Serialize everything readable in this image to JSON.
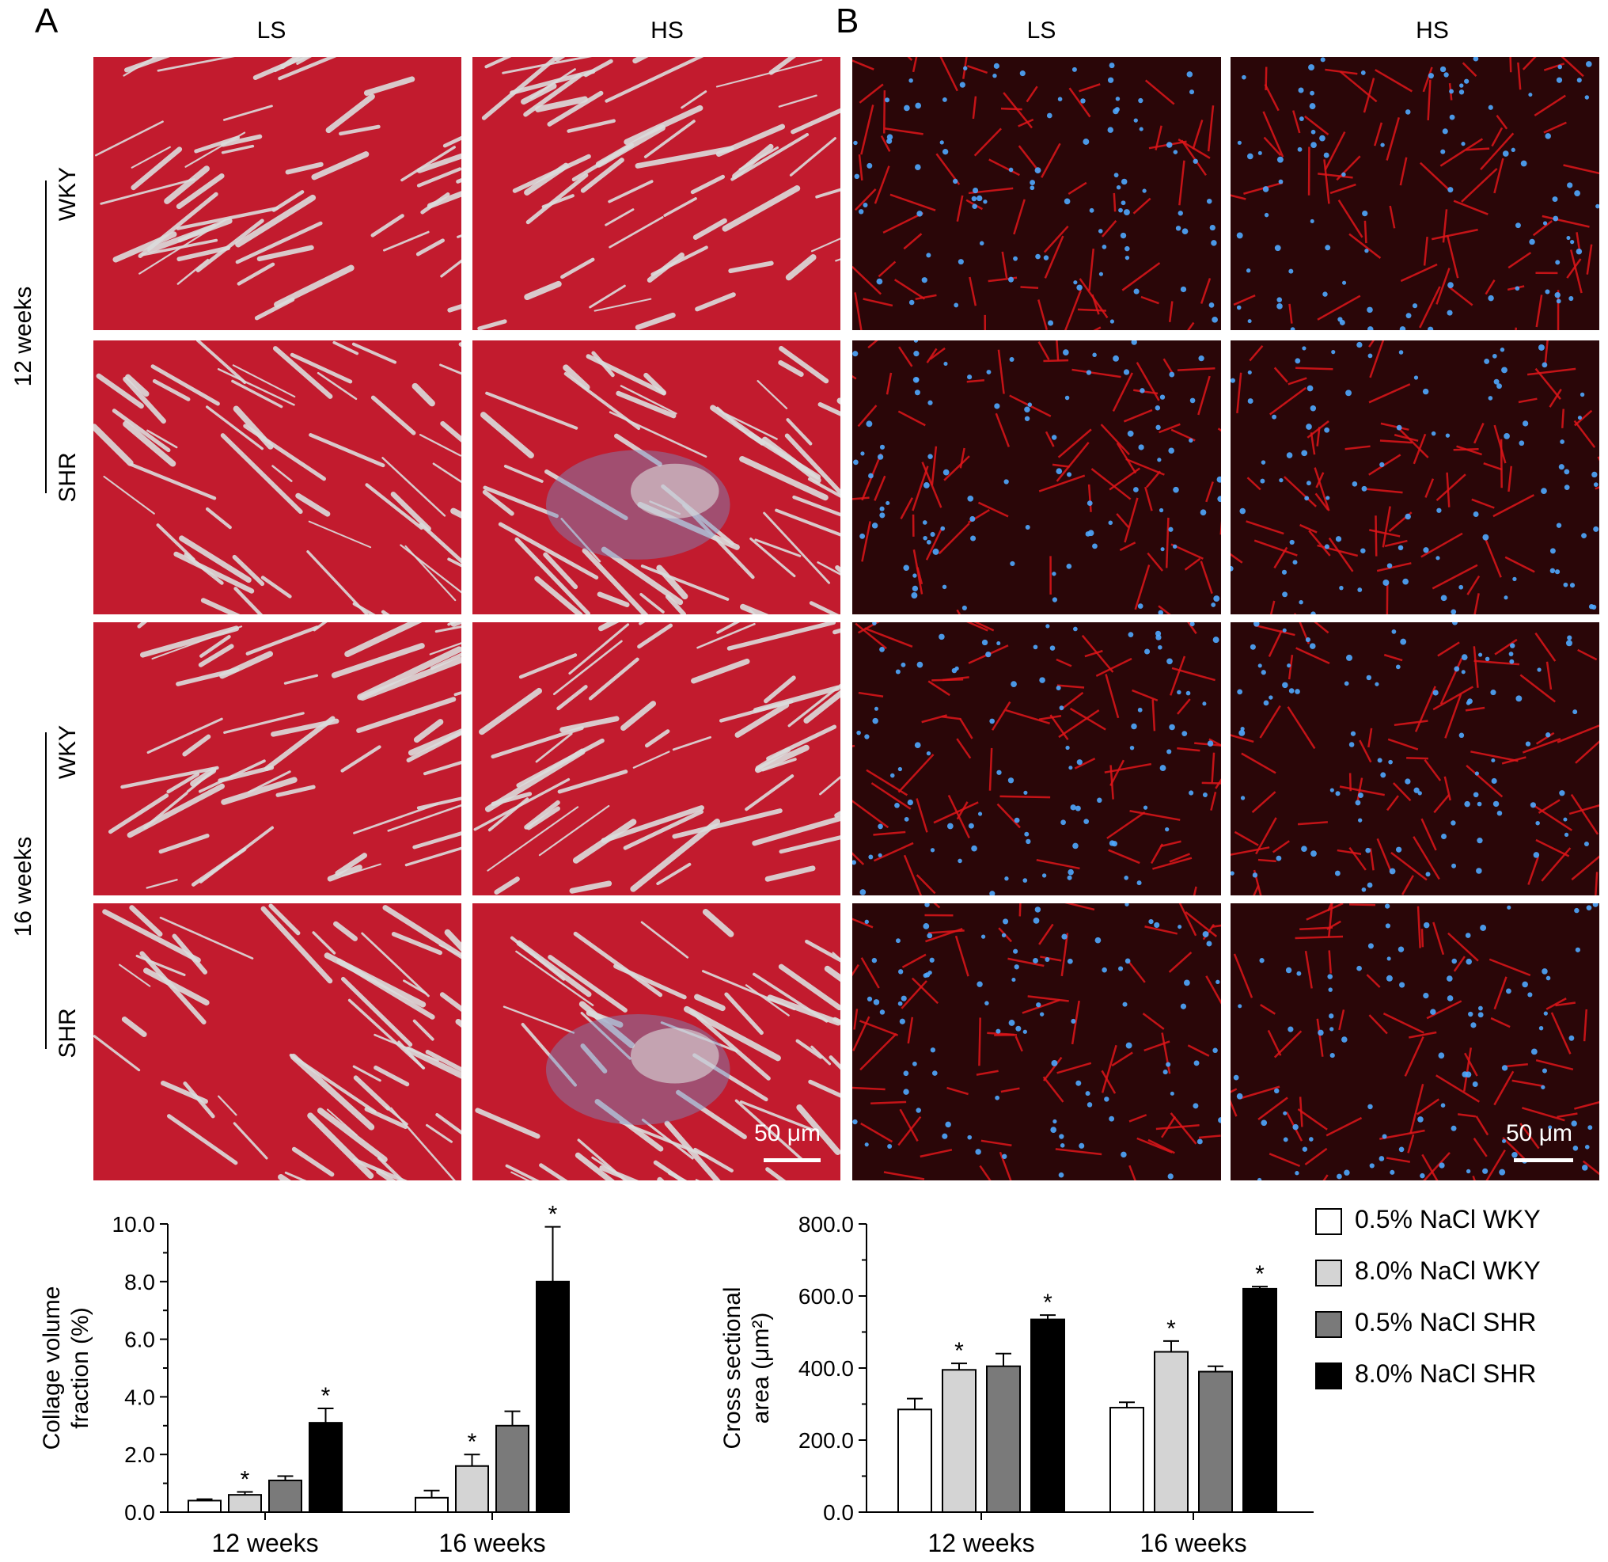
{
  "panels": [
    {
      "letter": "A",
      "cols": [
        "LS",
        "HS"
      ],
      "scale": "50 μm",
      "stain": "trichrome"
    },
    {
      "letter": "B",
      "cols": [
        "LS",
        "HS"
      ],
      "scale": "50 μm",
      "stain": "fluorescence"
    }
  ],
  "groups": [
    {
      "label": "12 weeks",
      "rows": [
        "WKY",
        "SHR"
      ]
    },
    {
      "label": "16 weeks",
      "rows": [
        "WKY",
        "SHR"
      ]
    }
  ],
  "colors": {
    "tissue_red": "#c21b2e",
    "space": "#dcdcdc",
    "collagen": "#7b8fc0",
    "fluor_bg": "#2a0608",
    "membrane": "#e0161a",
    "nucleus": "#4fa8ff"
  },
  "legend": [
    {
      "label": "0.5% NaCl WKY",
      "color": "#ffffff"
    },
    {
      "label": "8.0% NaCl WKY",
      "color": "#d4d4d4"
    },
    {
      "label": "0.5% NaCl SHR",
      "color": "#7a7a7a"
    },
    {
      "label": "8.0% NaCl SHR",
      "color": "#000000"
    }
  ],
  "chart_data": [
    {
      "type": "bar",
      "ylabel": "Collage volume fraction (%)",
      "ylabel_lines": [
        "Collage volume",
        "fraction (%)"
      ],
      "categories": [
        "12 weeks",
        "16 weeks"
      ],
      "ylim": [
        0,
        10
      ],
      "yticks": [
        "0.0",
        "2.0",
        "4.0",
        "6.0",
        "8.0",
        "10.0"
      ],
      "series": [
        {
          "name": "0.5% NaCl WKY",
          "values": [
            0.4,
            0.5
          ],
          "errors": [
            0.05,
            0.25
          ],
          "sig": [
            false,
            false
          ]
        },
        {
          "name": "8.0% NaCl WKY",
          "values": [
            0.6,
            1.6
          ],
          "errors": [
            0.1,
            0.4
          ],
          "sig": [
            true,
            true
          ]
        },
        {
          "name": "0.5% NaCl SHR",
          "values": [
            1.1,
            3.0
          ],
          "errors": [
            0.15,
            0.5
          ],
          "sig": [
            false,
            false
          ]
        },
        {
          "name": "8.0% NaCl SHR",
          "values": [
            3.1,
            8.0
          ],
          "errors": [
            0.5,
            1.9
          ],
          "sig": [
            true,
            true
          ]
        }
      ],
      "sig_marker": "*"
    },
    {
      "type": "bar",
      "ylabel": "Cross sectional area (μm²)",
      "ylabel_lines": [
        "Cross sectional",
        "area (μm²)"
      ],
      "categories": [
        "12 weeks",
        "16 weeks"
      ],
      "ylim": [
        0,
        800
      ],
      "yticks": [
        "0.0",
        "200.0",
        "400.0",
        "600.0",
        "800.0"
      ],
      "series": [
        {
          "name": "0.5% NaCl WKY",
          "values": [
            285,
            290
          ],
          "errors": [
            30,
            15
          ],
          "sig": [
            false,
            false
          ]
        },
        {
          "name": "8.0% NaCl WKY",
          "values": [
            395,
            445
          ],
          "errors": [
            18,
            30
          ],
          "sig": [
            true,
            true
          ]
        },
        {
          "name": "0.5% NaCl SHR",
          "values": [
            405,
            390
          ],
          "errors": [
            35,
            15
          ],
          "sig": [
            false,
            false
          ]
        },
        {
          "name": "8.0% NaCl SHR",
          "values": [
            535,
            620
          ],
          "errors": [
            12,
            6
          ],
          "sig": [
            true,
            true
          ]
        }
      ],
      "sig_marker": "*"
    }
  ]
}
